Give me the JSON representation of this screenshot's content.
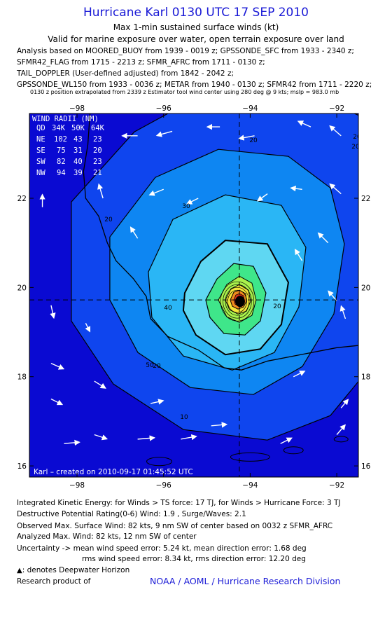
{
  "header": {
    "title": "Hurricane Karl 0130 UTC 17 SEP 2010",
    "subtitle": "Max 1-min sustained surface winds (kt)",
    "validity": "Valid for marine exposure over water, open terrain exposure over land",
    "analysis_lines": [
      "Analysis based on MOORED_BUOY from 1939 - 0019 z; GPSSONDE_SFC from 1933 - 2340 z;",
      "SFMR42_FLAG from 1715 - 2213 z; SFMR_AFRC from 1711 - 0130 z;",
      "TAIL_DOPPLER (User-defined adjusted) from 1842 - 2042 z;",
      "GPSSONDE_WL150 from 1933 - 0036 z; METAR from 1940 - 0130 z; SFMR42 from 1711 - 2220 z;"
    ],
    "position_note": "0130 z position extrapolated from 2339 z Estimator tool wind center using 280 deg @ 9 kts; mslp = 983.0 mb"
  },
  "map": {
    "lon_ticks": [
      "−98",
      "−96",
      "−94",
      "−92"
    ],
    "lat_ticks": [
      "22",
      "20",
      "18",
      "16"
    ],
    "lon_range": [
      -99.1,
      -91.5
    ],
    "lat_range": [
      15.75,
      23.9
    ],
    "center": {
      "lon": -94.25,
      "lat": 19.72
    },
    "contour_labels": [
      "20",
      "20",
      "20",
      "20",
      "20",
      "30",
      "40",
      "50",
      "20",
      "10"
    ],
    "wind_radii": {
      "title": "WIND RADII (NM)",
      "header": [
        "QD",
        "34K",
        "50K",
        "64K"
      ],
      "rows": [
        [
          "NE",
          "102",
          "43",
          "23"
        ],
        [
          "SE",
          "75",
          "31",
          "20"
        ],
        [
          "SW",
          "82",
          "40",
          "23"
        ],
        [
          "NW",
          "94",
          "39",
          "21"
        ]
      ]
    },
    "credit": "Karl – created on 2010-09-17 01:45:52 UTC",
    "colors": {
      "level_0": "#0a0ad2",
      "level_10": "#0f45ee",
      "level_20": "#0e86f2",
      "level_30": "#2ab6f5",
      "level_40": "#5fd7f2",
      "level_50": "#3fe68a",
      "level_60": "#a9f24c",
      "level_70": "#f4e63a",
      "level_80": "#f08a1e",
      "level_82": "#e0301c",
      "land_line": "#000000",
      "arrow": "#ffffff"
    }
  },
  "footer": {
    "ike": "Integrated Kinetic Energy:  for Winds > TS force: 17 TJ,  for Winds > Hurricane Force: 3 TJ",
    "dpr": "Destructive Potential Rating(0-6)   Wind: 1.9 , Surge/Waves: 2.1",
    "observed": "Observed Max. Surface Wind: 82 kts, 9 nm SW of center based on 0032 z SFMR_AFRC",
    "analyzed": "Analyzed Max. Wind: 82 kts, 12 nm SW of center",
    "uncertainty_1": "Uncertainty -> mean wind speed error: 5.24 kt,   mean direction error: 1.68 deg",
    "uncertainty_2": "rms wind speed error: 8.34 kt,   rms direction error: 12.20 deg",
    "deepwater": ": denotes Deepwater Horizon",
    "research": "Research product of",
    "noaa": "NOAA / AOML / Hurricane Research Division"
  }
}
